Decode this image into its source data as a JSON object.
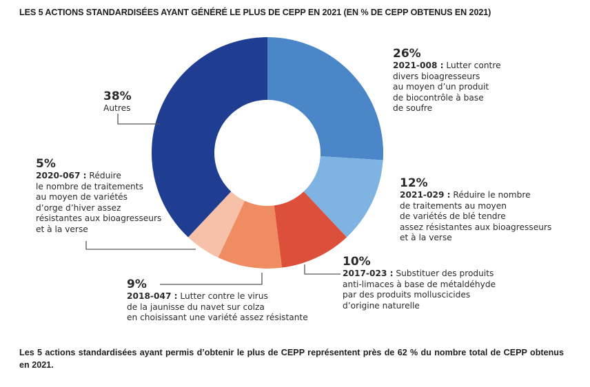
{
  "chart_data": {
    "type": "pie",
    "donut": true,
    "title": "LES 5 ACTIONS STANDARDISÉES AYANT GÉNÉRÉ LE PLUS DE CEPP EN 2021 (EN % DE CEPP OBTENUS EN 2021)",
    "slices": [
      {
        "label_pct": "26%",
        "value": 26,
        "code": "2021-008 :",
        "text": [
          "Lutter contre",
          "divers bioagresseurs",
          "au moyen d’un produit",
          "de biocontrôle à base",
          "de soufre"
        ],
        "color": "#4a86c8"
      },
      {
        "label_pct": "12%",
        "value": 12,
        "code": "2021-029 :",
        "text": [
          "Réduire le nombre",
          "de traitements au moyen",
          "de variétés de blé tendre",
          "assez résistantes aux bioagresseurs",
          "et à la verse"
        ],
        "color": "#7fb4e2"
      },
      {
        "label_pct": "10%",
        "value": 10,
        "code": "2017-023 :",
        "text": [
          "Substituer des produits",
          "anti-limaces à base de métaldéhyde",
          "par des produits molluscicides",
          "d’origine naturelle"
        ],
        "color": "#dc4f3a"
      },
      {
        "label_pct": "9%",
        "value": 9,
        "code": "2018-047 :",
        "text": [
          "Lutter contre le virus",
          "de la jaunisse du navet sur colza",
          "en choisissant une variété assez résistante"
        ],
        "color": "#f08c62"
      },
      {
        "label_pct": "5%",
        "value": 5,
        "code": "2020-067 :",
        "text": [
          "Réduire",
          "le nombre de traitements",
          "au moyen de variétés",
          "d’orge d’hiver assez",
          "résistantes aux bioagresseurs",
          "et à la verse"
        ],
        "color": "#f6c1a8"
      },
      {
        "label_pct": "38%",
        "value": 38,
        "code": "",
        "text": [
          "Autres"
        ],
        "color": "#1f3d91"
      }
    ]
  },
  "footnote": "Les 5 actions standardisées ayant permis d’obtenir le plus de CEPP représentent près de 62 % du nombre total de CEPP obtenus en 2021."
}
